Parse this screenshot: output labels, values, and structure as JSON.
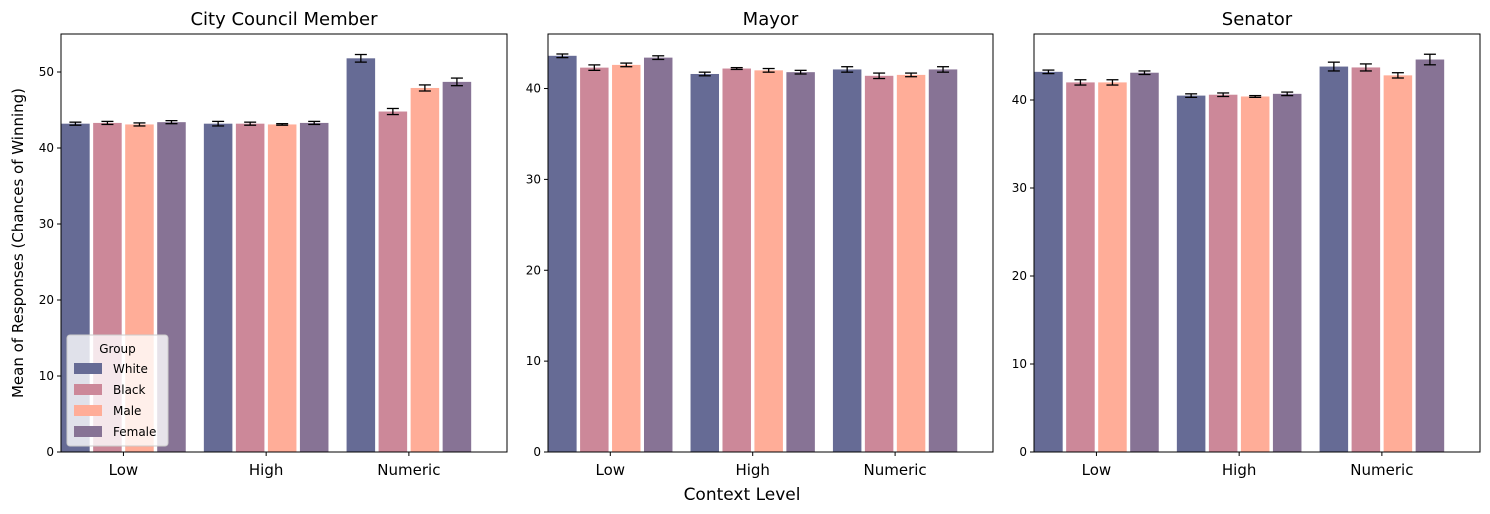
{
  "figure": {
    "ylabel": "Mean of Responses (Chances of Winning)",
    "xlabel": "Context Level"
  },
  "legend": {
    "title": "Group",
    "location": "lower-left",
    "entries": [
      "White",
      "Black",
      "Male",
      "Female"
    ]
  },
  "colors": {
    "White": "#666b95",
    "Black": "#cc8899",
    "Male": "#ffad98",
    "Female": "#877395",
    "errorbar": "#000000"
  },
  "chart_data": [
    {
      "type": "bar",
      "title": "City Council Member",
      "categories": [
        "Low",
        "High",
        "Numeric"
      ],
      "ylim": [
        0,
        55
      ],
      "yticks": [
        0,
        10,
        20,
        30,
        40,
        50
      ],
      "series": [
        {
          "name": "White",
          "values": [
            43.2,
            43.2,
            51.8
          ],
          "errors": [
            0.2,
            0.3,
            0.5
          ]
        },
        {
          "name": "Black",
          "values": [
            43.3,
            43.2,
            44.8
          ],
          "errors": [
            0.2,
            0.2,
            0.4
          ]
        },
        {
          "name": "Male",
          "values": [
            43.1,
            43.1,
            47.9
          ],
          "errors": [
            0.2,
            0.1,
            0.4
          ]
        },
        {
          "name": "Female",
          "values": [
            43.4,
            43.3,
            48.7
          ],
          "errors": [
            0.2,
            0.2,
            0.5
          ]
        }
      ]
    },
    {
      "type": "bar",
      "title": "Mayor",
      "categories": [
        "Low",
        "High",
        "Numeric"
      ],
      "ylim": [
        0,
        46
      ],
      "yticks": [
        0,
        10,
        20,
        30,
        40
      ],
      "series": [
        {
          "name": "White",
          "values": [
            43.6,
            41.6,
            42.1
          ],
          "errors": [
            0.2,
            0.2,
            0.3
          ]
        },
        {
          "name": "Black",
          "values": [
            42.3,
            42.2,
            41.4
          ],
          "errors": [
            0.3,
            0.1,
            0.3
          ]
        },
        {
          "name": "Male",
          "values": [
            42.6,
            42.0,
            41.5
          ],
          "errors": [
            0.2,
            0.2,
            0.2
          ]
        },
        {
          "name": "Female",
          "values": [
            43.4,
            41.8,
            42.1
          ],
          "errors": [
            0.2,
            0.2,
            0.3
          ]
        }
      ]
    },
    {
      "type": "bar",
      "title": "Senator",
      "categories": [
        "Low",
        "High",
        "Numeric"
      ],
      "ylim": [
        0,
        47.5
      ],
      "yticks": [
        0,
        10,
        20,
        30,
        40
      ],
      "series": [
        {
          "name": "White",
          "values": [
            43.2,
            40.5,
            43.8
          ],
          "errors": [
            0.2,
            0.2,
            0.5
          ]
        },
        {
          "name": "Black",
          "values": [
            42.0,
            40.6,
            43.7
          ],
          "errors": [
            0.3,
            0.2,
            0.4
          ]
        },
        {
          "name": "Male",
          "values": [
            42.0,
            40.4,
            42.8
          ],
          "errors": [
            0.3,
            0.1,
            0.3
          ]
        },
        {
          "name": "Female",
          "values": [
            43.1,
            40.7,
            44.6
          ],
          "errors": [
            0.2,
            0.2,
            0.6
          ]
        }
      ]
    }
  ]
}
